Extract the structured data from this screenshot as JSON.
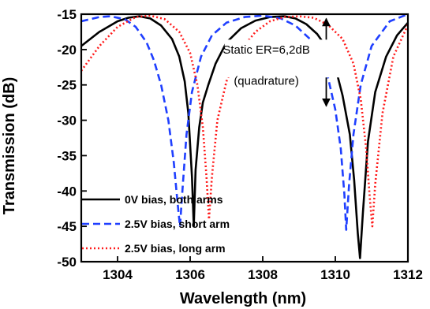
{
  "chart_data": {
    "type": "line",
    "xlabel": "Wavelength (nm)",
    "ylabel": "Transmission (dB)",
    "xlim": [
      1303,
      1312
    ],
    "ylim": [
      -50,
      -15
    ],
    "xticks": [
      1304,
      1306,
      1308,
      1310,
      1312
    ],
    "yticks": [
      -15,
      -20,
      -25,
      -30,
      -35,
      -40,
      -45,
      -50
    ],
    "grid": false,
    "legend_position": "bottom-left",
    "series": [
      {
        "name": "0V bias, both arms",
        "color": "#000000",
        "style": "solid",
        "x": [
          1303.0,
          1303.5,
          1304.0,
          1304.3,
          1304.6,
          1304.9,
          1305.2,
          1305.5,
          1305.7,
          1305.85,
          1305.95,
          1306.05,
          1306.1,
          1306.15,
          1306.25,
          1306.35,
          1306.5,
          1306.7,
          1307.0,
          1307.4,
          1307.8,
          1308.2,
          1308.6,
          1308.9,
          1309.2,
          1309.5,
          1309.8,
          1310.0,
          1310.2,
          1310.4,
          1310.52,
          1310.62,
          1310.68,
          1310.76,
          1310.9,
          1311.1,
          1311.4,
          1311.7,
          1312.0
        ],
        "y": [
          -19.5,
          -17.5,
          -16.0,
          -15.5,
          -15.3,
          -15.6,
          -16.6,
          -18.5,
          -21.0,
          -24.5,
          -29.0,
          -38.0,
          -45.0,
          -37.0,
          -31.0,
          -27.5,
          -25.0,
          -22.0,
          -19.0,
          -17.0,
          -15.9,
          -15.4,
          -15.3,
          -15.6,
          -16.4,
          -17.8,
          -20.0,
          -22.5,
          -26.5,
          -32.0,
          -38.5,
          -46.0,
          -49.5,
          -43.0,
          -33.0,
          -26.0,
          -21.0,
          -18.0,
          -16.2
        ]
      },
      {
        "name": "2.5V bias, short arm",
        "color": "#1f3fff",
        "style": "dashed",
        "x": [
          1303.0,
          1303.5,
          1303.8,
          1304.2,
          1304.5,
          1304.8,
          1305.0,
          1305.2,
          1305.4,
          1305.55,
          1305.65,
          1305.72,
          1305.8,
          1305.9,
          1306.05,
          1306.3,
          1306.6,
          1307.0,
          1307.5,
          1308.0,
          1308.5,
          1308.9,
          1309.3,
          1309.6,
          1309.8,
          1310.0,
          1310.15,
          1310.25,
          1310.3,
          1310.38,
          1310.5,
          1310.7,
          1311.0,
          1311.5,
          1312.0
        ],
        "y": [
          -16.0,
          -15.4,
          -15.3,
          -15.7,
          -16.8,
          -19.0,
          -21.5,
          -25.0,
          -30.0,
          -36.0,
          -41.5,
          -45.0,
          -39.0,
          -32.0,
          -26.0,
          -21.0,
          -18.0,
          -16.2,
          -15.4,
          -15.2,
          -15.6,
          -16.6,
          -18.5,
          -21.0,
          -24.0,
          -28.5,
          -34.0,
          -40.5,
          -45.5,
          -39.0,
          -32.0,
          -25.0,
          -19.5,
          -16.0,
          -15.0
        ]
      },
      {
        "name": "2.5V bias, long arm",
        "color": "#ff1a1a",
        "style": "dotted",
        "x": [
          1303.0,
          1303.5,
          1304.0,
          1304.5,
          1304.9,
          1305.3,
          1305.7,
          1306.0,
          1306.2,
          1306.35,
          1306.45,
          1306.52,
          1306.6,
          1306.75,
          1307.0,
          1307.4,
          1307.8,
          1308.2,
          1308.6,
          1309.0,
          1309.4,
          1309.8,
          1310.2,
          1310.5,
          1310.7,
          1310.85,
          1310.95,
          1311.02,
          1311.1,
          1311.3,
          1311.6,
          1312.0
        ],
        "y": [
          -23.0,
          -19.5,
          -16.8,
          -15.4,
          -15.2,
          -15.7,
          -17.5,
          -20.5,
          -25.0,
          -31.0,
          -38.0,
          -44.0,
          -38.0,
          -30.0,
          -24.5,
          -20.0,
          -17.5,
          -16.0,
          -15.4,
          -15.3,
          -15.5,
          -16.5,
          -18.5,
          -22.0,
          -27.0,
          -34.0,
          -41.0,
          -45.0,
          -39.0,
          -29.0,
          -21.0,
          -16.5
        ]
      }
    ],
    "annotation": {
      "line1": "Static ER=6,2dB",
      "line2": "(quadrature)",
      "arrow_x": 1309.75,
      "arrow_y_top": -15.4,
      "arrow_y_bottom": -28.0
    }
  }
}
